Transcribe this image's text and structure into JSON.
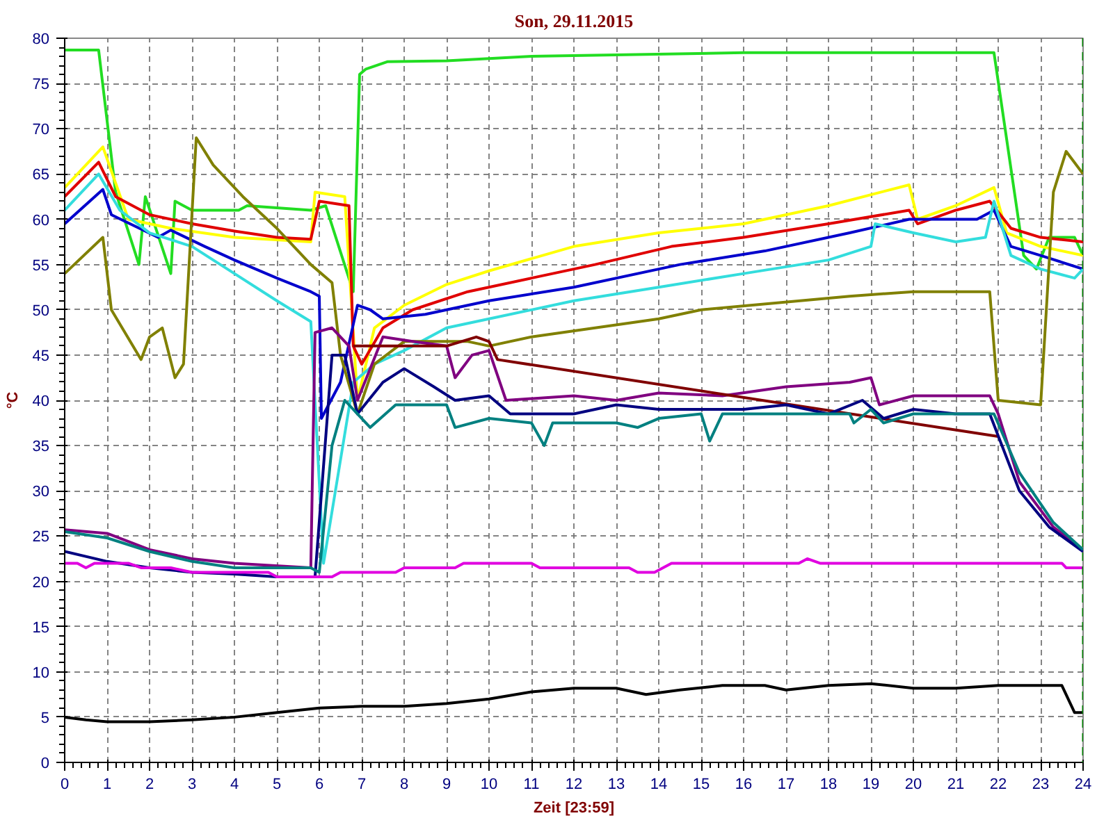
{
  "chart_data": {
    "type": "line",
    "title": "Son, 29.11.2015",
    "xlabel": "Zeit [23:59]",
    "ylabel": "°C",
    "xlim": [
      0,
      24
    ],
    "ylim": [
      0,
      80
    ],
    "xticks": [
      0,
      1,
      2,
      3,
      4,
      5,
      6,
      7,
      8,
      9,
      10,
      11,
      12,
      13,
      14,
      15,
      16,
      17,
      18,
      19,
      20,
      21,
      22,
      23,
      24
    ],
    "yticks": [
      0,
      5,
      10,
      15,
      20,
      25,
      30,
      35,
      40,
      45,
      50,
      55,
      60,
      65,
      70,
      75,
      80
    ],
    "grid": true,
    "marker": "none",
    "line_style": "solid",
    "ref_lines": [
      {
        "axis": "x",
        "value": 24,
        "color": "#008000",
        "line_style": "dashed"
      }
    ],
    "series": [
      {
        "color": "#22dd22",
        "x": [
          0,
          0.8,
          1.2,
          1.75,
          1.9,
          2.5,
          2.6,
          3,
          4.1,
          4.3,
          5.8,
          6.15,
          6.8,
          6.95,
          7.1,
          7.6,
          9,
          11,
          16,
          21.9,
          22.6,
          22.9,
          23.2,
          23.8,
          24
        ],
        "values": [
          78.7,
          78.7,
          63,
          55,
          62.5,
          54,
          62,
          61,
          61,
          61.5,
          61,
          61.5,
          52,
          76,
          76.6,
          77.4,
          77.5,
          78,
          78.4,
          78.4,
          56,
          54.5,
          58,
          58,
          56
        ]
      },
      {
        "color": "#ffff00",
        "x": [
          0,
          0.9,
          1.5,
          2.5,
          4,
          5.8,
          5.9,
          6.6,
          6.9,
          7.3,
          8,
          9,
          10,
          12,
          14,
          16,
          18,
          19.9,
          20.1,
          21,
          21.9,
          22.2,
          23,
          24
        ],
        "values": [
          63.5,
          68,
          60,
          59,
          58,
          57.5,
          63,
          62.5,
          40,
          48,
          50.5,
          52.8,
          54.3,
          57,
          58.5,
          59.5,
          61.5,
          63.8,
          60,
          61.5,
          63.5,
          58.5,
          57,
          56
        ]
      },
      {
        "color": "#e00000",
        "x": [
          0,
          0.8,
          1.2,
          2,
          3,
          4,
          5,
          5.8,
          6,
          6.7,
          6.8,
          7,
          7.5,
          8.2,
          9.5,
          11,
          12.5,
          14.3,
          16,
          18,
          19.9,
          20.1,
          21,
          21.8,
          22.3,
          23,
          24
        ],
        "values": [
          62.5,
          66.3,
          62.5,
          60.5,
          59.5,
          58.7,
          58,
          57.8,
          62,
          61.5,
          46,
          44,
          48,
          50,
          52,
          53.5,
          55,
          57,
          58,
          59.5,
          61,
          59.5,
          61,
          62,
          59,
          58,
          57.5
        ]
      },
      {
        "color": "#0000cc",
        "x": [
          0,
          0.9,
          1.1,
          2.2,
          2.5,
          3.3,
          4,
          5,
          5.8,
          6,
          6.05,
          6.5,
          6.9,
          7.2,
          7.5,
          8.5,
          10,
          12,
          14.5,
          16.5,
          18.5,
          19.9,
          20.5,
          21.5,
          21.9,
          22.3,
          23,
          24
        ],
        "values": [
          59.5,
          63.3,
          60.5,
          58,
          58.8,
          57,
          55.5,
          53.5,
          52,
          51.5,
          38,
          42,
          50.5,
          50,
          49,
          49.5,
          51,
          52.5,
          55,
          56.5,
          58.5,
          60,
          60,
          60,
          61,
          57,
          56,
          54.5
        ]
      },
      {
        "color": "#33dddd",
        "x": [
          0,
          0.8,
          1.3,
          2,
          3,
          4,
          5,
          5.8,
          6.1,
          6.8,
          7.3,
          8,
          9,
          10,
          12,
          14,
          16,
          18,
          19,
          19.1,
          20,
          21,
          21.7,
          21.9,
          22.3,
          23,
          23.8,
          24
        ],
        "values": [
          61,
          65,
          61,
          58.5,
          57,
          54,
          51,
          48.7,
          22,
          42,
          44,
          45.5,
          48,
          49,
          51,
          52.5,
          54,
          55.5,
          57,
          59.5,
          58.5,
          57.5,
          58,
          62,
          56,
          54.5,
          53.5,
          54.5
        ]
      },
      {
        "color": "#808000",
        "x": [
          0,
          0.9,
          1.1,
          1.8,
          2,
          2.3,
          2.6,
          2.8,
          3.1,
          3.5,
          4.2,
          5,
          5.8,
          6.3,
          6.5,
          6.9,
          7.3,
          8,
          9.5,
          10,
          11,
          12.5,
          14,
          15,
          18.5,
          20,
          21.8,
          22,
          23,
          23.3,
          23.6,
          24
        ],
        "values": [
          54,
          58,
          50,
          44.5,
          47,
          48,
          42.5,
          44,
          69,
          66,
          62.5,
          59,
          55,
          53,
          45,
          38.5,
          44,
          46.5,
          46.5,
          46,
          47,
          48,
          49,
          50,
          51.5,
          52,
          52,
          40,
          39.5,
          63,
          67.5,
          65
        ]
      },
      {
        "color": "#800080",
        "x": [
          0,
          1,
          2,
          3,
          4,
          5.8,
          5.9,
          6.3,
          6.7,
          6.9,
          7.5,
          8.2,
          9,
          9.2,
          9.6,
          10,
          10.4,
          12,
          13,
          14,
          15.5,
          17,
          18.5,
          19,
          19.2,
          20,
          21.8,
          22,
          22.5,
          23.3,
          24
        ],
        "values": [
          25.7,
          25.3,
          23.5,
          22.5,
          22,
          21.5,
          47.5,
          48,
          46,
          40,
          47,
          46.5,
          46,
          42.5,
          45,
          45.5,
          40,
          40.5,
          40,
          40.8,
          40.5,
          41.5,
          42,
          42.5,
          39.5,
          40.5,
          40.5,
          38.5,
          31,
          26,
          23.5
        ]
      },
      {
        "color": "#800000",
        "x": [
          6.8,
          9,
          9.7,
          10,
          10.2,
          22
        ],
        "values": [
          46,
          46,
          47,
          46.5,
          44.5,
          36
        ]
      },
      {
        "color": "#000080",
        "x": [
          0,
          1,
          2,
          3,
          4,
          5,
          5.9,
          6.3,
          6.6,
          6.9,
          7.5,
          8,
          8.7,
          9.2,
          10,
          10.5,
          12,
          13,
          14,
          16,
          17,
          18,
          18.8,
          19.3,
          20,
          21,
          21.8,
          22.5,
          23.2,
          24
        ],
        "values": [
          23.3,
          22.2,
          21.5,
          21,
          20.8,
          20.5,
          20.5,
          45,
          45,
          38.5,
          42,
          43.5,
          41.5,
          40,
          40.5,
          38.5,
          38.5,
          39.5,
          39,
          39,
          39.5,
          38.5,
          40,
          38,
          39,
          38.5,
          38.5,
          30,
          26,
          23.3
        ]
      },
      {
        "color": "#008080",
        "x": [
          0,
          1,
          2,
          3,
          4,
          5.8,
          6,
          6.3,
          6.6,
          7,
          7.2,
          7.8,
          9,
          9.2,
          10,
          11,
          11.3,
          11.5,
          13,
          13.5,
          14,
          15,
          15.2,
          15.5,
          17,
          18.5,
          18.6,
          19,
          19.3,
          20,
          21.5,
          21.9,
          22.5,
          23.3,
          24
        ],
        "values": [
          25.5,
          24.8,
          23.3,
          22.2,
          21.5,
          21.5,
          21,
          35,
          40,
          38,
          37,
          39.5,
          39.5,
          37,
          38,
          37.5,
          35,
          37.5,
          37.5,
          37,
          38,
          38.5,
          35.5,
          38.5,
          38.5,
          38.5,
          37.5,
          39,
          37.5,
          38.5,
          38.5,
          38.5,
          32,
          26.5,
          23.5
        ]
      },
      {
        "color": "#e000e0",
        "x": [
          0,
          0.3,
          0.5,
          0.7,
          1.5,
          1.8,
          2.5,
          3,
          4.8,
          5,
          6.3,
          6.5,
          7.8,
          8,
          9.2,
          9.4,
          11,
          11.2,
          13.3,
          13.5,
          13.9,
          14.3,
          17.3,
          17.5,
          17.8,
          23.5,
          23.6,
          24
        ],
        "values": [
          22,
          22,
          21.5,
          22,
          22,
          21.5,
          21.5,
          21,
          21,
          20.5,
          20.5,
          21,
          21,
          21.5,
          21.5,
          22,
          22,
          21.5,
          21.5,
          21,
          21,
          22,
          22,
          22.5,
          22,
          22,
          21.5,
          21.5
        ]
      },
      {
        "color": "#000000",
        "x": [
          0,
          0.5,
          1,
          2,
          3,
          4,
          5,
          6,
          7,
          8,
          9,
          10,
          11,
          12,
          13,
          13.7,
          14.5,
          15.5,
          16.5,
          17,
          18,
          19,
          20,
          21,
          22,
          23.5,
          23.8,
          24
        ],
        "values": [
          5,
          4.7,
          4.5,
          4.5,
          4.7,
          5,
          5.5,
          6,
          6.2,
          6.2,
          6.5,
          7,
          7.8,
          8.2,
          8.2,
          7.5,
          8,
          8.5,
          8.5,
          8,
          8.5,
          8.7,
          8.2,
          8.2,
          8.5,
          8.5,
          5.5,
          5.5
        ]
      }
    ]
  }
}
